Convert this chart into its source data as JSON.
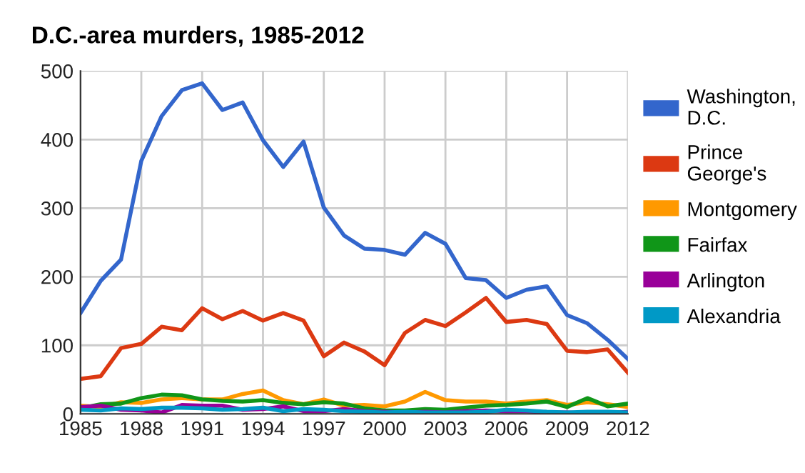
{
  "chart_data": {
    "type": "line",
    "title": "D.C.-area murders, 1985-2012",
    "x": [
      1985,
      1986,
      1987,
      1988,
      1989,
      1990,
      1991,
      1992,
      1993,
      1994,
      1995,
      1996,
      1997,
      1998,
      1999,
      2000,
      2001,
      2002,
      2003,
      2004,
      2005,
      2006,
      2007,
      2008,
      2009,
      2010,
      2011,
      2012
    ],
    "series": [
      {
        "name": "Washington, D.C.",
        "color": "#3366cc",
        "values": [
          147,
          194,
          225,
          369,
          434,
          472,
          482,
          443,
          454,
          399,
          360,
          397,
          301,
          260,
          241,
          239,
          232,
          264,
          248,
          198,
          195,
          169,
          181,
          186,
          144,
          132,
          108,
          80
        ]
      },
      {
        "name": "Prince George's",
        "color": "#dc3912",
        "values": [
          51,
          55,
          96,
          102,
          127,
          122,
          154,
          138,
          150,
          136,
          147,
          136,
          84,
          104,
          91,
          71,
          118,
          137,
          128,
          148,
          169,
          134,
          137,
          131,
          92,
          90,
          94,
          60
        ]
      },
      {
        "name": "Montgomery",
        "color": "#ff9900",
        "values": [
          12,
          10,
          17,
          16,
          21,
          23,
          21,
          21,
          29,
          34,
          20,
          14,
          21,
          12,
          13,
          11,
          18,
          32,
          20,
          18,
          18,
          15,
          18,
          20,
          13,
          17,
          14,
          10
        ]
      },
      {
        "name": "Fairfax",
        "color": "#109618",
        "values": [
          8,
          14,
          15,
          23,
          28,
          27,
          21,
          19,
          18,
          20,
          16,
          14,
          17,
          15,
          8,
          5,
          5,
          7,
          6,
          9,
          12,
          13,
          15,
          18,
          10,
          23,
          11,
          15
        ]
      },
      {
        "name": "Arlington",
        "color": "#990099",
        "values": [
          10,
          12,
          6,
          5,
          2,
          13,
          12,
          12,
          6,
          7,
          11,
          4,
          4,
          7,
          4,
          3,
          2,
          3,
          2,
          4,
          5,
          4,
          4,
          2,
          2,
          1,
          1,
          3
        ]
      },
      {
        "name": "Alexandria",
        "color": "#0099c6",
        "values": [
          6,
          5,
          8,
          7,
          9,
          9,
          8,
          6,
          7,
          9,
          4,
          7,
          6,
          4,
          3,
          2,
          3,
          2,
          2,
          2,
          3,
          6,
          5,
          3,
          2,
          3,
          3,
          2
        ]
      }
    ],
    "xlim": [
      1985,
      2012
    ],
    "xticks": [
      1985,
      1988,
      1991,
      1994,
      1997,
      2000,
      2003,
      2006,
      2009,
      2012
    ],
    "ylim": [
      0,
      500
    ],
    "yticks": [
      0,
      100,
      200,
      300,
      400,
      500
    ],
    "grid": true,
    "legend": "right",
    "marker": "none",
    "line_style": "solid"
  }
}
